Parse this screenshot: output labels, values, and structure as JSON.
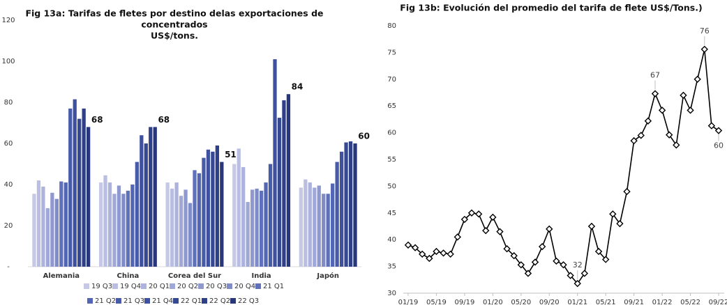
{
  "chart_data": [
    {
      "type": "bar",
      "title": [
        "Fig 13a: Tarifas de fletes por destino delas  exportaciones de",
        "concentrados",
        "US$/tons."
      ],
      "categories": [
        "Alemania",
        "China",
        "Corea del Sur",
        "India",
        "Japón"
      ],
      "ylim": [
        0,
        120
      ],
      "yticks": [
        {
          "value": 0,
          "label": "-"
        },
        20,
        40,
        60,
        80,
        100,
        120
      ],
      "series": [
        {
          "name": "19 Q3",
          "color": "#c5c9e6",
          "values": [
            35.5,
            41,
            41,
            50,
            38.5
          ]
        },
        {
          "name": "19 Q4",
          "color": "#b9bee2",
          "values": [
            42,
            44.5,
            38,
            57.5,
            42.5
          ]
        },
        {
          "name": "20 Q1",
          "color": "#adb3dd",
          "values": [
            39,
            41,
            41,
            48.5,
            41
          ]
        },
        {
          "name": "20 Q2",
          "color": "#a0a8d8",
          "values": [
            28.5,
            35.5,
            34.5,
            31.5,
            38.5
          ]
        },
        {
          "name": "20 Q3",
          "color": "#8f99d0",
          "values": [
            36,
            39.5,
            37.5,
            37.5,
            39.5
          ]
        },
        {
          "name": "20 Q4",
          "color": "#7f8cc8",
          "values": [
            33,
            35.5,
            31,
            38,
            35.5
          ]
        },
        {
          "name": "21 Q1",
          "color": "#5f71bb",
          "values": [
            41.5,
            37,
            47,
            37,
            35.5
          ]
        },
        {
          "name": "21 Q2",
          "color": "#5366b3",
          "values": [
            41,
            40,
            45.5,
            41,
            40.5
          ]
        },
        {
          "name": "21 Q3",
          "color": "#485ba9",
          "values": [
            77,
            51,
            53,
            50,
            51
          ]
        },
        {
          "name": "21 Q4",
          "color": "#3f519e",
          "values": [
            81.5,
            64,
            57,
            101,
            56
          ]
        },
        {
          "name": "22 Q1",
          "color": "#374893",
          "values": [
            72,
            60,
            56,
            72.5,
            60.5
          ]
        },
        {
          "name": "22 Q2",
          "color": "#2f3f88",
          "values": [
            77,
            68,
            59,
            81,
            61
          ]
        },
        {
          "name": "22 Q3",
          "color": "#28367c",
          "values": [
            68,
            68,
            51,
            84,
            60
          ],
          "show_labels": true
        }
      ]
    },
    {
      "type": "line",
      "title": "Fig 13b: Evolución del promedio del tarifa de flete US$/Tons.)",
      "categories": [
        "01/19",
        null,
        null,
        null,
        "05/19",
        null,
        null,
        null,
        "09/19",
        null,
        null,
        null,
        "01/20",
        null,
        null,
        null,
        "05/20",
        null,
        null,
        null,
        "09/20",
        null,
        null,
        null,
        "01/21",
        null,
        null,
        null,
        "05/21",
        null,
        null,
        null,
        "09/21",
        null,
        null,
        null,
        "01/22",
        null,
        null,
        null,
        "05/22",
        null,
        null,
        null,
        "09/22"
      ],
      "ylim": [
        30,
        80
      ],
      "yticks": [
        30,
        35,
        40,
        45,
        50,
        55,
        60,
        65,
        70,
        75,
        80
      ],
      "color": "#000000",
      "values": [
        39,
        38.5,
        37.3,
        36.5,
        37.8,
        37.5,
        37.3,
        40.5,
        43.8,
        45,
        44.8,
        41.7,
        44.2,
        41.5,
        38.3,
        37,
        35.3,
        33.7,
        35.8,
        38.7,
        42,
        36,
        35.3,
        33.3,
        31.8,
        33.7,
        42.5,
        37.8,
        36.3,
        44.8,
        43,
        49,
        58.5,
        59.5,
        62.2,
        67.3,
        64.2,
        59.6,
        57.7,
        67,
        64.2,
        70,
        75.6,
        61.3,
        60.4
      ],
      "value_labels": [
        null,
        null,
        null,
        null,
        null,
        null,
        null,
        null,
        null,
        null,
        null,
        null,
        null,
        null,
        null,
        null,
        null,
        null,
        null,
        null,
        null,
        null,
        null,
        null,
        "32",
        null,
        null,
        null,
        null,
        null,
        null,
        null,
        null,
        null,
        null,
        "67",
        null,
        null,
        null,
        null,
        null,
        null,
        "76",
        null,
        "60"
      ]
    }
  ]
}
